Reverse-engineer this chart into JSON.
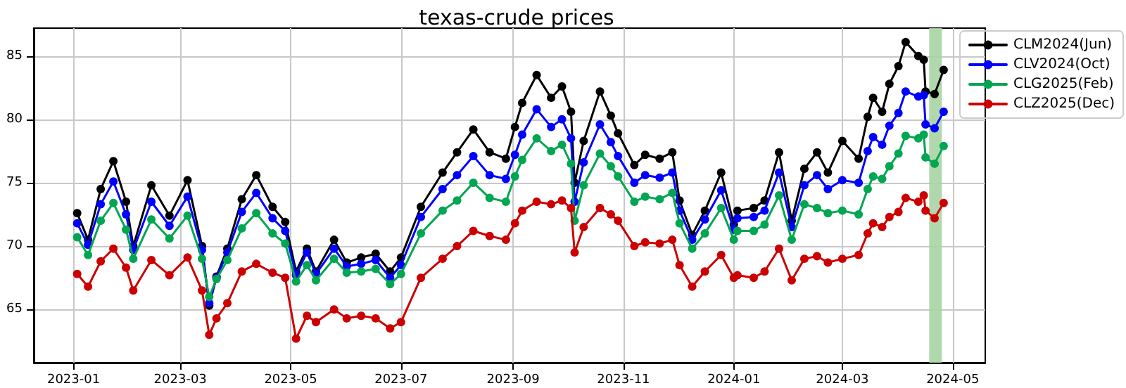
{
  "chart_data": {
    "type": "line",
    "title": "texas-crude prices",
    "x": [
      "2023-01-03",
      "2023-01-09",
      "2023-01-16",
      "2023-01-23",
      "2023-01-30",
      "2023-02-03",
      "2023-02-13",
      "2023-02-23",
      "2023-03-05",
      "2023-03-13",
      "2023-03-17",
      "2023-03-21",
      "2023-03-27",
      "2023-04-04",
      "2023-04-12",
      "2023-04-21",
      "2023-04-28",
      "2023-05-04",
      "2023-05-10",
      "2023-05-15",
      "2023-05-25",
      "2023-06-01",
      "2023-06-09",
      "2023-06-17",
      "2023-06-25",
      "2023-07-01",
      "2023-07-12",
      "2023-07-24",
      "2023-08-01",
      "2023-08-10",
      "2023-08-19",
      "2023-08-28",
      "2023-09-02",
      "2023-09-06",
      "2023-09-14",
      "2023-09-22",
      "2023-09-28",
      "2023-10-03",
      "2023-10-05",
      "2023-10-10",
      "2023-10-19",
      "2023-10-25",
      "2023-10-29",
      "2023-11-07",
      "2023-11-13",
      "2023-11-21",
      "2023-11-28",
      "2023-12-02",
      "2023-12-09",
      "2023-12-16",
      "2023-12-25",
      "2024-01-01",
      "2024-01-03",
      "2024-01-12",
      "2024-01-18",
      "2024-01-26",
      "2024-02-02",
      "2024-02-09",
      "2024-02-16",
      "2024-02-22",
      "2024-03-01",
      "2024-03-10",
      "2024-03-15",
      "2024-03-18",
      "2024-03-23",
      "2024-03-27",
      "2024-04-01",
      "2024-04-05",
      "2024-04-12",
      "2024-04-15",
      "2024-04-16",
      "2024-04-21",
      "2024-04-26"
    ],
    "series": [
      {
        "name": "CLM2024(Jun)",
        "color": "#000000",
        "values": [
          72.6,
          70.5,
          74.5,
          76.7,
          73.5,
          70.0,
          74.8,
          72.4,
          75.2,
          70.0,
          65.3,
          67.6,
          69.8,
          73.7,
          75.6,
          73.1,
          71.9,
          68.0,
          69.8,
          68.0,
          70.5,
          68.7,
          69.1,
          69.4,
          68.0,
          69.1,
          73.1,
          75.8,
          77.4,
          79.2,
          77.4,
          76.9,
          79.4,
          81.3,
          83.5,
          81.7,
          82.6,
          80.6,
          75.0,
          78.3,
          82.2,
          80.3,
          78.9,
          76.4,
          77.2,
          76.9,
          77.4,
          73.6,
          70.9,
          72.8,
          75.8,
          71.7,
          72.8,
          73.0,
          73.6,
          77.4,
          72.0,
          76.1,
          77.4,
          75.8,
          78.3,
          76.9,
          80.2,
          81.7,
          80.6,
          82.8,
          84.2,
          86.1,
          85.0,
          84.7,
          82.2,
          82.0,
          83.9
        ]
      },
      {
        "name": "CLV2024(Oct)",
        "color": "#0000ff",
        "values": [
          71.8,
          70.1,
          73.3,
          75.1,
          72.5,
          69.7,
          73.5,
          71.6,
          73.9,
          69.7,
          65.5,
          67.5,
          69.5,
          72.7,
          74.2,
          72.2,
          71.2,
          67.7,
          69.5,
          67.8,
          69.8,
          68.4,
          68.6,
          68.9,
          67.5,
          68.5,
          72.3,
          74.5,
          75.6,
          77.1,
          75.6,
          75.3,
          77.2,
          78.8,
          80.8,
          79.4,
          80.0,
          78.5,
          73.5,
          76.6,
          79.6,
          78.2,
          77.1,
          75.0,
          75.6,
          75.4,
          75.8,
          72.8,
          70.5,
          72.1,
          74.4,
          71.3,
          72.2,
          72.3,
          72.8,
          75.8,
          71.5,
          74.8,
          75.6,
          74.5,
          75.2,
          75.0,
          77.5,
          78.6,
          78.0,
          79.5,
          80.5,
          82.2,
          81.8,
          81.9,
          79.6,
          79.3,
          80.6
        ]
      },
      {
        "name": "CLG2025(Feb)",
        "color": "#00a651",
        "values": [
          70.7,
          69.3,
          72.0,
          73.4,
          71.3,
          69.0,
          72.1,
          70.6,
          72.4,
          69.0,
          66.0,
          67.4,
          68.9,
          71.4,
          72.6,
          71.0,
          70.2,
          67.2,
          68.5,
          67.3,
          69.0,
          67.9,
          68.0,
          68.2,
          67.0,
          67.8,
          71.0,
          72.8,
          73.6,
          75.0,
          73.8,
          73.5,
          75.5,
          76.8,
          78.5,
          77.5,
          78.0,
          76.5,
          72.0,
          74.8,
          77.3,
          76.3,
          75.5,
          73.5,
          73.9,
          73.7,
          74.2,
          71.8,
          69.8,
          71.0,
          73.0,
          70.5,
          71.2,
          71.2,
          71.7,
          74.0,
          70.5,
          73.3,
          73.0,
          72.6,
          72.8,
          72.5,
          74.5,
          75.5,
          75.3,
          76.3,
          77.3,
          78.7,
          78.5,
          78.8,
          77.0,
          76.5,
          77.9
        ]
      },
      {
        "name": "CLZ2025(Dec)",
        "color": "#cc0000",
        "values": [
          67.8,
          66.8,
          68.8,
          69.8,
          68.3,
          66.5,
          68.9,
          67.7,
          69.1,
          66.5,
          63.0,
          64.3,
          65.5,
          68.0,
          68.6,
          67.9,
          67.5,
          62.7,
          64.5,
          64.0,
          65.0,
          64.3,
          64.5,
          64.3,
          63.5,
          64.0,
          67.5,
          69.0,
          70.0,
          71.2,
          70.8,
          70.5,
          71.8,
          72.8,
          73.5,
          73.3,
          73.6,
          73.0,
          69.5,
          71.5,
          73.0,
          72.5,
          72.0,
          70.0,
          70.3,
          70.2,
          70.5,
          68.5,
          66.8,
          68.0,
          69.3,
          67.5,
          67.7,
          67.5,
          68.0,
          69.8,
          67.3,
          69.0,
          69.2,
          68.7,
          69.0,
          69.3,
          71.0,
          71.8,
          71.5,
          72.3,
          72.7,
          73.8,
          73.5,
          74.0,
          72.8,
          72.2,
          73.4
        ]
      }
    ],
    "xlim": [
      "2022-12-10",
      "2024-05-19"
    ],
    "xticks": [
      "2023-01",
      "2023-03",
      "2023-05",
      "2023-07",
      "2023-09",
      "2023-11",
      "2024-01",
      "2024-03",
      "2024-05"
    ],
    "ylim": [
      60.8,
      87.2
    ],
    "yticks": [
      65,
      70,
      75,
      80,
      85
    ],
    "bands": [
      {
        "axis": "x",
        "from": "2024-04-18",
        "to": "2024-04-25",
        "color": "#a9d4a4"
      }
    ],
    "grid": true,
    "legend": "right",
    "marker": "circle",
    "line_style": "solid"
  }
}
